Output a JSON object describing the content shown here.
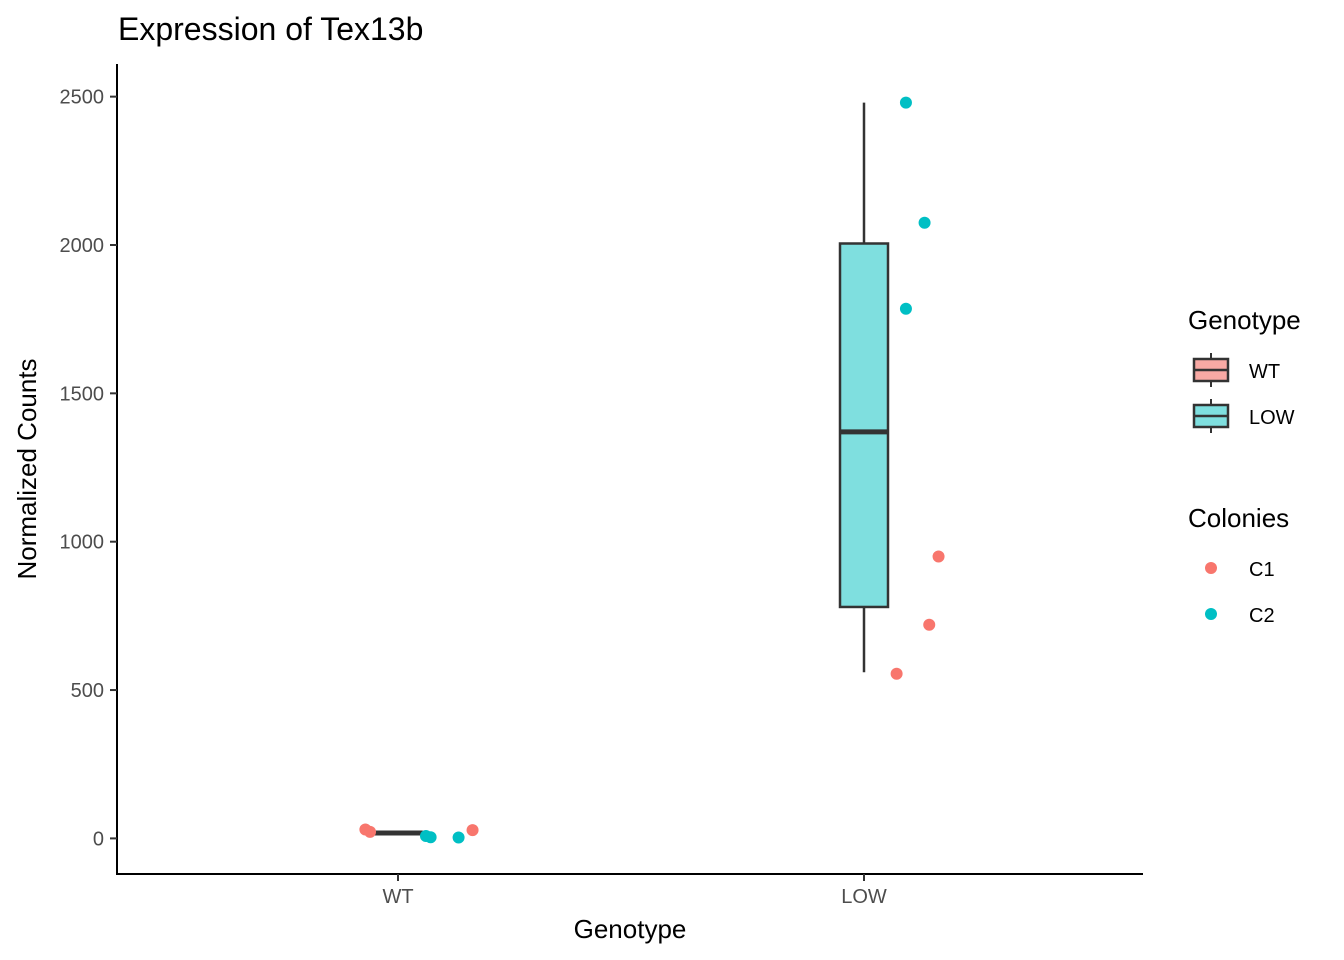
{
  "chart_data": {
    "type": "boxplot",
    "title": "Expression of Tex13b",
    "xlabel": "Genotype",
    "ylabel": "Normalized Counts",
    "categories": [
      "WT",
      "LOW"
    ],
    "ylim": [
      -120,
      2610
    ],
    "yticks": [
      0,
      500,
      1000,
      1500,
      2000,
      2500
    ],
    "grid": false,
    "boxes": [
      {
        "category": "WT",
        "min": 15,
        "q1": 15,
        "median": 18,
        "q3": 22,
        "max": 22,
        "fill": "#F8A9A4"
      },
      {
        "category": "LOW",
        "min": 560,
        "q1": 780,
        "median": 1370,
        "q3": 2005,
        "max": 2480,
        "fill": "#7FDFDF"
      }
    ],
    "series": [
      {
        "name": "C1",
        "color": "#F8766D",
        "points": [
          {
            "category": "WT",
            "offset": -0.07,
            "y": 30
          },
          {
            "category": "WT",
            "offset": -0.06,
            "y": 22
          },
          {
            "category": "WT",
            "offset": 0.16,
            "y": 28
          },
          {
            "category": "LOW",
            "offset": 0.07,
            "y": 555
          },
          {
            "category": "LOW",
            "offset": 0.14,
            "y": 720
          },
          {
            "category": "LOW",
            "offset": 0.16,
            "y": 950
          }
        ]
      },
      {
        "name": "C2",
        "color": "#00BFC4",
        "points": [
          {
            "category": "WT",
            "offset": 0.06,
            "y": 8
          },
          {
            "category": "WT",
            "offset": 0.07,
            "y": 4
          },
          {
            "category": "WT",
            "offset": 0.13,
            "y": 3
          },
          {
            "category": "LOW",
            "offset": 0.09,
            "y": 1785
          },
          {
            "category": "LOW",
            "offset": 0.13,
            "y": 2075
          },
          {
            "category": "LOW",
            "offset": 0.09,
            "y": 2480
          }
        ]
      }
    ],
    "legends": [
      {
        "title": "Genotype",
        "kind": "box",
        "entries": [
          {
            "label": "WT",
            "color": "#F8A9A4"
          },
          {
            "label": "LOW",
            "color": "#7FDFDF"
          }
        ]
      },
      {
        "title": "Colonies",
        "kind": "point",
        "entries": [
          {
            "label": "C1",
            "color": "#F8766D"
          },
          {
            "label": "C2",
            "color": "#00BFC4"
          }
        ]
      }
    ],
    "legend_position": "right"
  }
}
